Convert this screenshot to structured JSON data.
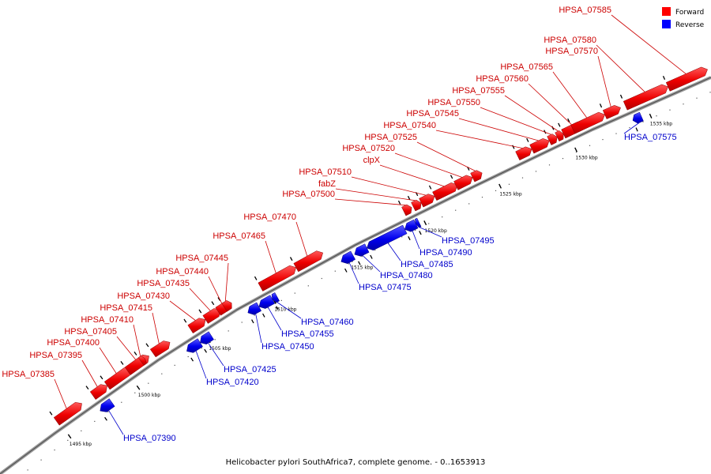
{
  "caption": "Helicobacter pylori SouthAfrica7, complete genome. - 0..1653913",
  "legend": [
    {
      "label": "Forward",
      "color": "#ff0000"
    },
    {
      "label": "Reverse",
      "color": "#0000ff"
    }
  ],
  "ticks": [
    {
      "label": "1495 kbp",
      "at": 1495
    },
    {
      "label": "1500 kbp",
      "at": 1500
    },
    {
      "label": "1505 kbp",
      "at": 1505
    },
    {
      "label": "1510 kbp",
      "at": 1510
    },
    {
      "label": "1515 kbp",
      "at": 1515
    },
    {
      "label": "1520 kbp",
      "at": 1520
    },
    {
      "label": "1525 kbp",
      "at": 1525
    },
    {
      "label": "1530 kbp",
      "at": 1530
    },
    {
      "label": "1535 kbp",
      "at": 1535
    }
  ],
  "genes": [
    {
      "name": "HPSA_07385",
      "strand": "forward"
    },
    {
      "name": "HPSA_07390",
      "strand": "reverse"
    },
    {
      "name": "HPSA_07395",
      "strand": "forward"
    },
    {
      "name": "HPSA_07400",
      "strand": "forward"
    },
    {
      "name": "HPSA_07405",
      "strand": "forward"
    },
    {
      "name": "HPSA_07410",
      "strand": "forward"
    },
    {
      "name": "HPSA_07415",
      "strand": "forward"
    },
    {
      "name": "HPSA_07420",
      "strand": "reverse"
    },
    {
      "name": "HPSA_07425",
      "strand": "reverse"
    },
    {
      "name": "HPSA_07430",
      "strand": "forward"
    },
    {
      "name": "HPSA_07435",
      "strand": "forward"
    },
    {
      "name": "HPSA_07440",
      "strand": "forward"
    },
    {
      "name": "HPSA_07445",
      "strand": "forward"
    },
    {
      "name": "HPSA_07450",
      "strand": "reverse"
    },
    {
      "name": "HPSA_07455",
      "strand": "reverse"
    },
    {
      "name": "HPSA_07460",
      "strand": "reverse"
    },
    {
      "name": "HPSA_07465",
      "strand": "forward"
    },
    {
      "name": "HPSA_07470",
      "strand": "forward"
    },
    {
      "name": "HPSA_07475",
      "strand": "reverse"
    },
    {
      "name": "HPSA_07480",
      "strand": "reverse"
    },
    {
      "name": "HPSA_07485",
      "strand": "reverse"
    },
    {
      "name": "HPSA_07490",
      "strand": "reverse"
    },
    {
      "name": "HPSA_07495",
      "strand": "reverse"
    },
    {
      "name": "HPSA_07500",
      "strand": "forward"
    },
    {
      "name": "fabZ",
      "strand": "forward"
    },
    {
      "name": "HPSA_07510",
      "strand": "forward"
    },
    {
      "name": "clpX",
      "strand": "forward"
    },
    {
      "name": "HPSA_07520",
      "strand": "forward"
    },
    {
      "name": "HPSA_07525",
      "strand": "forward"
    },
    {
      "name": "HPSA_07540",
      "strand": "forward"
    },
    {
      "name": "HPSA_07545",
      "strand": "forward"
    },
    {
      "name": "HPSA_07550",
      "strand": "forward"
    },
    {
      "name": "HPSA_07555",
      "strand": "forward"
    },
    {
      "name": "HPSA_07560",
      "strand": "forward"
    },
    {
      "name": "HPSA_07565",
      "strand": "forward"
    },
    {
      "name": "HPSA_07570",
      "strand": "forward"
    },
    {
      "name": "HPSA_07575",
      "strand": "reverse"
    },
    {
      "name": "HPSA_07580",
      "strand": "forward"
    },
    {
      "name": "HPSA_07585",
      "strand": "forward"
    }
  ]
}
